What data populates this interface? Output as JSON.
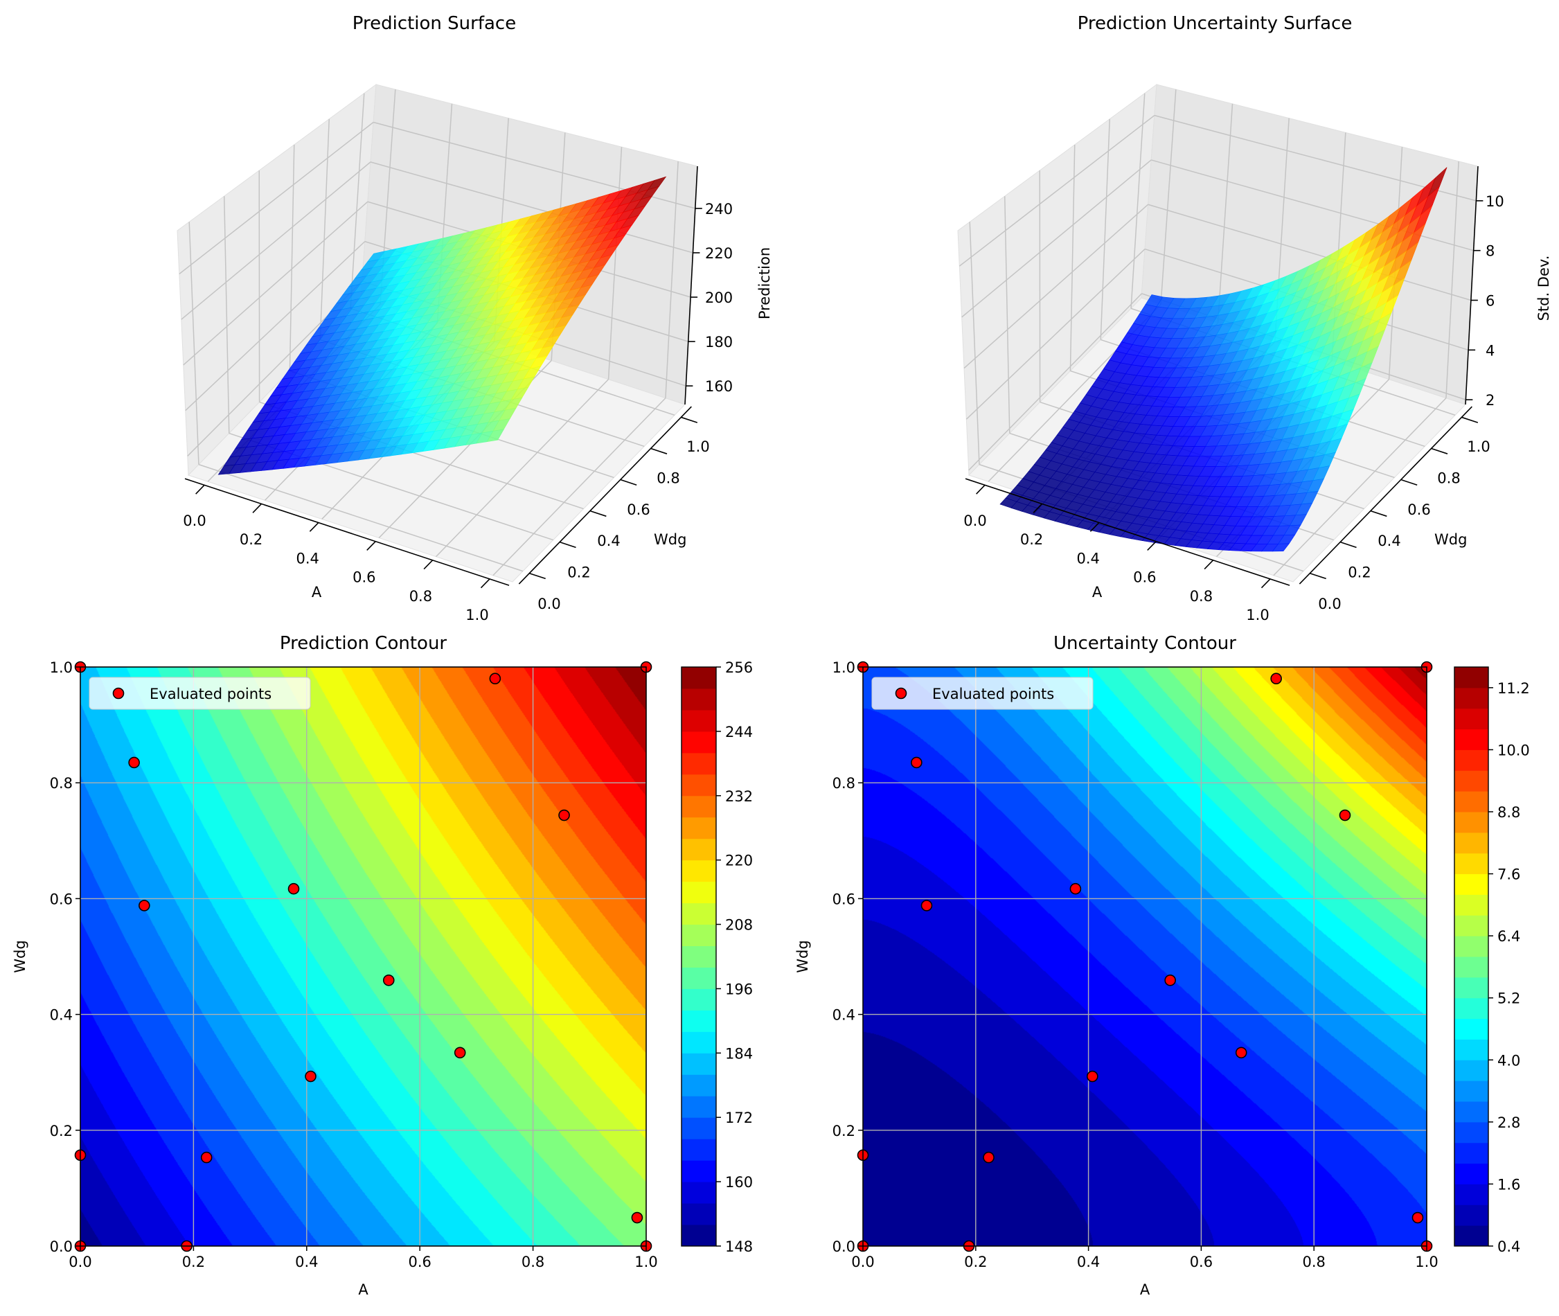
{
  "figure": {
    "surface_pred": {
      "title": "Prediction Surface",
      "xlabel": "A",
      "ylabel": "Wdg",
      "zlabel": "Prediction",
      "xticks": [
        "0.0",
        "0.2",
        "0.4",
        "0.6",
        "0.8",
        "1.0"
      ],
      "yticks": [
        "0.0",
        "0.2",
        "0.4",
        "0.6",
        "0.8",
        "1.0"
      ],
      "zticks": [
        "160",
        "180",
        "200",
        "220",
        "240"
      ]
    },
    "surface_unc": {
      "title": "Prediction Uncertainty Surface",
      "xlabel": "A",
      "ylabel": "Wdg",
      "zlabel": "Std. Dev.",
      "xticks": [
        "0.0",
        "0.2",
        "0.4",
        "0.6",
        "0.8",
        "1.0"
      ],
      "yticks": [
        "0.0",
        "0.2",
        "0.4",
        "0.6",
        "0.8",
        "1.0"
      ],
      "zticks": [
        "2",
        "4",
        "6",
        "8",
        "10"
      ]
    },
    "contour_pred": {
      "title": "Prediction Contour",
      "xlabel": "A",
      "ylabel": "Wdg",
      "xticks": [
        "0.0",
        "0.2",
        "0.4",
        "0.6",
        "0.8",
        "1.0"
      ],
      "yticks": [
        "0.0",
        "0.2",
        "0.4",
        "0.6",
        "0.8",
        "1.0"
      ],
      "colorbar_ticks": [
        "148",
        "160",
        "172",
        "184",
        "196",
        "208",
        "220",
        "232",
        "244",
        "256"
      ],
      "legend": "Evaluated points"
    },
    "contour_unc": {
      "title": "Uncertainty Contour",
      "xlabel": "A",
      "ylabel": "Wdg",
      "xticks": [
        "0.0",
        "0.2",
        "0.4",
        "0.6",
        "0.8",
        "1.0"
      ],
      "yticks": [
        "0.0",
        "0.2",
        "0.4",
        "0.6",
        "0.8",
        "1.0"
      ],
      "colorbar_ticks": [
        "0.4",
        "1.6",
        "2.8",
        "4.0",
        "5.2",
        "6.4",
        "7.6",
        "8.8",
        "10.0",
        "11.2"
      ],
      "legend": "Evaluated points"
    }
  },
  "chart_data": [
    {
      "type": "surface",
      "title": "Prediction Surface",
      "xlabel": "A",
      "ylabel": "Wdg",
      "zlabel": "Prediction",
      "xlim": [
        0,
        1
      ],
      "ylim": [
        0,
        1
      ],
      "zticks": [
        160,
        180,
        200,
        220,
        240
      ],
      "z_range": [
        150,
        256
      ],
      "colormap": "jet",
      "corner_values": {
        "A0_W0": 150,
        "A1_W0": 202,
        "A0_W1": 182,
        "A1_W1": 256
      }
    },
    {
      "type": "surface",
      "title": "Prediction Uncertainty Surface",
      "xlabel": "A",
      "ylabel": "Wdg",
      "zlabel": "Std. Dev.",
      "xlim": [
        0,
        1
      ],
      "ylim": [
        0,
        1
      ],
      "zticks": [
        2,
        4,
        6,
        8,
        10
      ],
      "z_range": [
        0.5,
        11.5
      ],
      "colormap": "jet",
      "corner_values": {
        "A0_W0": 0.5,
        "A1_W0": 2.3,
        "A0_W1": 2.7,
        "A1_W1": 11.5
      }
    },
    {
      "type": "contour",
      "title": "Prediction Contour",
      "xlabel": "A",
      "ylabel": "Wdg",
      "xlim": [
        0,
        1
      ],
      "ylim": [
        0,
        1
      ],
      "grid": true,
      "legend": "top-left",
      "colormap": "jet",
      "levels": {
        "min": 148,
        "max": 256,
        "step": 4
      },
      "colorbar_ticks": [
        148,
        160,
        172,
        184,
        196,
        208,
        220,
        232,
        244,
        256
      ],
      "series": [
        {
          "name": "Evaluated points",
          "color": "#ff0000",
          "edgecolor": "#000000",
          "points": [
            [
              0,
              1
            ],
            [
              0,
              0
            ],
            [
              0,
              0.157
            ],
            [
              0.095,
              0.835
            ],
            [
              0.113,
              0.588
            ],
            [
              0.188,
              0
            ],
            [
              0.223,
              0.153
            ],
            [
              0.377,
              0.617
            ],
            [
              0.407,
              0.293
            ],
            [
              0.545,
              0.459
            ],
            [
              0.671,
              0.334
            ],
            [
              0.733,
              0.98
            ],
            [
              0.855,
              0.744
            ],
            [
              0.984,
              0.049
            ],
            [
              1,
              1
            ],
            [
              1,
              0
            ]
          ]
        }
      ]
    },
    {
      "type": "contour",
      "title": "Uncertainty Contour",
      "xlabel": "A",
      "ylabel": "Wdg",
      "xlim": [
        0,
        1
      ],
      "ylim": [
        0,
        1
      ],
      "grid": true,
      "legend": "top-left",
      "colormap": "jet",
      "levels": {
        "min": 0.4,
        "max": 11.6,
        "step": 0.4
      },
      "colorbar_ticks": [
        0.4,
        1.6,
        2.8,
        4.0,
        5.2,
        6.4,
        7.6,
        8.8,
        10.0,
        11.2
      ],
      "series": [
        {
          "name": "Evaluated points",
          "color": "#ff0000",
          "edgecolor": "#000000",
          "points": [
            [
              0,
              1
            ],
            [
              0,
              0
            ],
            [
              0,
              0.157
            ],
            [
              0.095,
              0.835
            ],
            [
              0.113,
              0.588
            ],
            [
              0.188,
              0
            ],
            [
              0.223,
              0.153
            ],
            [
              0.377,
              0.617
            ],
            [
              0.407,
              0.293
            ],
            [
              0.545,
              0.459
            ],
            [
              0.671,
              0.334
            ],
            [
              0.733,
              0.98
            ],
            [
              0.855,
              0.744
            ],
            [
              0.984,
              0.049
            ],
            [
              1,
              1
            ],
            [
              1,
              0
            ]
          ]
        }
      ]
    }
  ]
}
